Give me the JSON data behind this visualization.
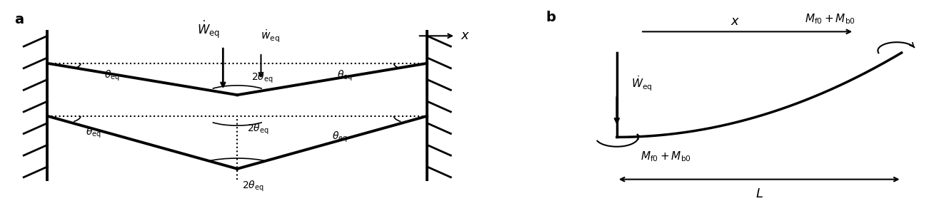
{
  "fig_width": 13.29,
  "fig_height": 2.96,
  "dpi": 100,
  "background": "white",
  "panel_a_label": "a",
  "panel_b_label": "b",
  "label_x_italic": "x",
  "label_W_dot": "$\\dot{W}$",
  "label_w_dot": "$\\dot{w}$",
  "label_theta_eq": "$\\theta_{\\mathrm{eq}}$",
  "label_2theta_eq": "$2\\theta_{\\mathrm{eq}}$",
  "label_Mf0_Mb0": "$M_{\\mathrm{f0}}+M_{\\mathrm{b0}}$",
  "label_Weq": "$\\dot{W}_{\\mathrm{eq}}$",
  "label_L": "$L$"
}
